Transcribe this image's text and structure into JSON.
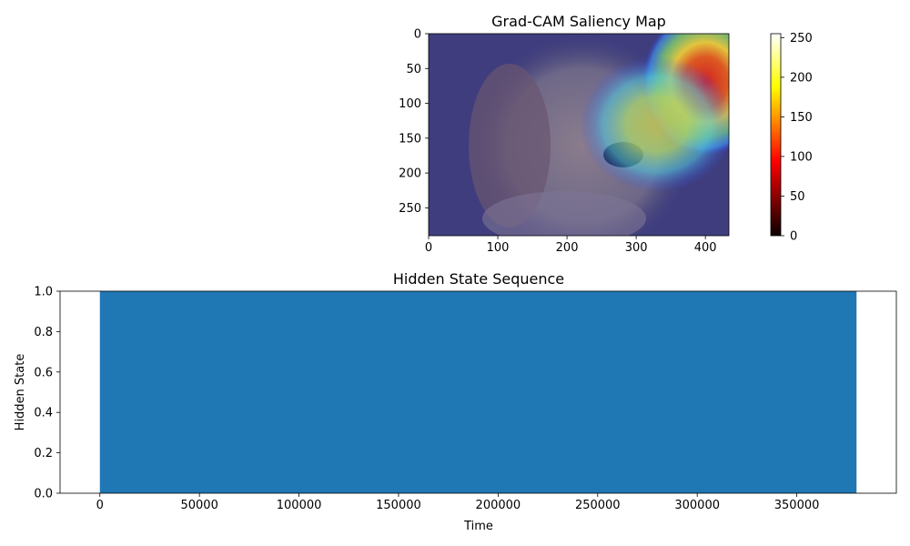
{
  "chart_data": [
    {
      "type": "heatmap",
      "title": "Grad-CAM Saliency Map",
      "description_colormap": "jet overlay on photo",
      "x_ticks": [
        "0",
        "100",
        "200",
        "300",
        "400"
      ],
      "y_ticks": [
        "0",
        "50",
        "100",
        "150",
        "200",
        "250"
      ],
      "xlim": [
        0,
        434
      ],
      "ylim": [
        0,
        290
      ],
      "colorbar": {
        "colormap": "hot",
        "range": [
          0,
          255
        ],
        "ticks": [
          "0",
          "50",
          "100",
          "150",
          "200",
          "250"
        ]
      },
      "hotspots": [
        {
          "x": 400,
          "y": 70,
          "level": 0.95
        },
        {
          "x": 330,
          "y": 130,
          "level": 0.65
        }
      ]
    },
    {
      "type": "bar",
      "title": "Hidden State Sequence",
      "xlabel": "Time",
      "ylabel": "Hidden State",
      "xlim": [
        -20000,
        400000
      ],
      "ylim": [
        0,
        1.0
      ],
      "fill_range": [
        0,
        380000
      ],
      "value": 1.0,
      "color": "#1f77b4",
      "x_ticks": [
        "0",
        "50000",
        "100000",
        "150000",
        "200000",
        "250000",
        "300000",
        "350000"
      ],
      "y_ticks": [
        "0.0",
        "0.2",
        "0.4",
        "0.6",
        "0.8",
        "1.0"
      ]
    }
  ]
}
